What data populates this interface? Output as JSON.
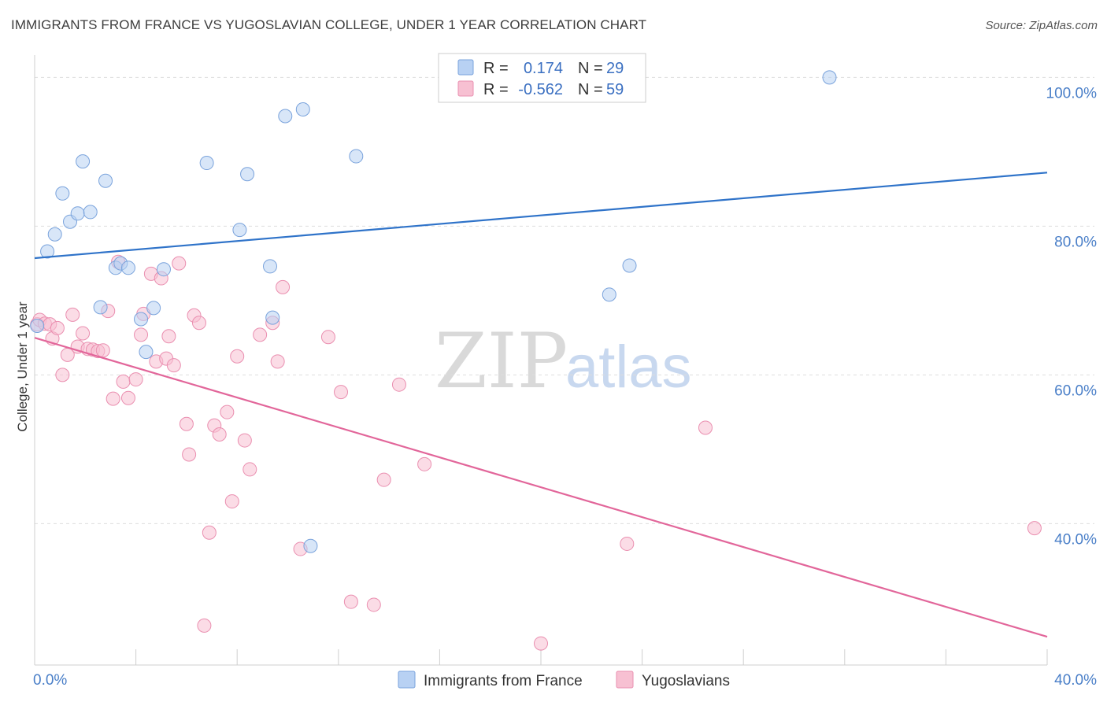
{
  "title": "IMMIGRANTS FROM FRANCE VS YUGOSLAVIAN COLLEGE, UNDER 1 YEAR CORRELATION CHART",
  "source": "Source: ZipAtlas.com",
  "watermark": {
    "zip": "ZIP",
    "atlas": "atlas"
  },
  "colors": {
    "blue_fill": "#b8d1f3",
    "blue_stroke": "#7aa3dc",
    "blue_line": "#2f73c9",
    "pink_fill": "#f7c0d2",
    "pink_stroke": "#ea8fb0",
    "pink_line": "#e2669a",
    "tick_text": "#4a7fc8",
    "grid": "#dddddd"
  },
  "legend": {
    "rows": [
      {
        "r_label": "R =",
        "r_value": "0.174",
        "n_label": "N =",
        "n_value": "29",
        "series": "blue"
      },
      {
        "r_label": "R =",
        "r_value": "-0.562",
        "n_label": "N =",
        "n_value": "59",
        "series": "pink"
      }
    ]
  },
  "chart_data": {
    "type": "scatter",
    "title": "IMMIGRANTS FROM FRANCE VS YUGOSLAVIAN COLLEGE, UNDER 1 YEAR CORRELATION CHART",
    "xlabel": "",
    "ylabel": "College, Under 1 year",
    "xlim": [
      0,
      40
    ],
    "ylim": [
      21,
      103
    ],
    "x_tick_labels": [
      {
        "value": 0,
        "label": "0.0%"
      },
      {
        "value": 40,
        "label": "40.0%"
      }
    ],
    "y_tick_labels": [
      {
        "value": 100,
        "label": "100.0%"
      },
      {
        "value": 80,
        "label": "80.0%"
      },
      {
        "value": 60,
        "label": "60.0%"
      },
      {
        "value": 40,
        "label": "40.0%"
      }
    ],
    "x_minor_ticks": [
      0,
      4,
      8,
      12,
      16,
      20,
      24,
      28,
      32,
      36,
      40
    ],
    "grid": true,
    "legend_position": "top-center",
    "series": [
      {
        "name": "Immigrants from France",
        "color": "blue",
        "points": [
          [
            0.1,
            66.6
          ],
          [
            0.5,
            76.6
          ],
          [
            0.8,
            78.9
          ],
          [
            1.1,
            84.4
          ],
          [
            1.4,
            80.6
          ],
          [
            1.7,
            81.7
          ],
          [
            1.9,
            88.7
          ],
          [
            2.2,
            81.9
          ],
          [
            2.6,
            69.1
          ],
          [
            2.8,
            86.1
          ],
          [
            3.2,
            74.4
          ],
          [
            3.4,
            75.0
          ],
          [
            3.7,
            74.4
          ],
          [
            4.2,
            67.5
          ],
          [
            4.4,
            63.1
          ],
          [
            4.7,
            69.0
          ],
          [
            5.1,
            74.2
          ],
          [
            6.8,
            88.5
          ],
          [
            8.1,
            79.5
          ],
          [
            8.4,
            87.0
          ],
          [
            9.3,
            74.6
          ],
          [
            9.4,
            67.7
          ],
          [
            9.9,
            94.8
          ],
          [
            10.6,
            95.7
          ],
          [
            10.9,
            37.0
          ],
          [
            12.7,
            89.4
          ],
          [
            22.7,
            70.8
          ],
          [
            23.5,
            74.7
          ],
          [
            31.4,
            100.0
          ]
        ],
        "trend": {
          "x": [
            0,
            40
          ],
          "y": [
            75.7,
            87.2
          ]
        }
      },
      {
        "name": "Yugoslavians",
        "color": "pink",
        "points": [
          [
            0.1,
            66.8
          ],
          [
            0.2,
            67.4
          ],
          [
            0.4,
            66.9
          ],
          [
            0.6,
            66.8
          ],
          [
            0.7,
            64.9
          ],
          [
            0.9,
            66.3
          ],
          [
            1.1,
            60.0
          ],
          [
            1.3,
            62.7
          ],
          [
            1.5,
            68.1
          ],
          [
            1.7,
            63.8
          ],
          [
            1.9,
            65.6
          ],
          [
            2.1,
            63.5
          ],
          [
            2.3,
            63.4
          ],
          [
            2.5,
            63.2
          ],
          [
            2.7,
            63.3
          ],
          [
            2.9,
            68.6
          ],
          [
            3.1,
            56.8
          ],
          [
            3.3,
            75.2
          ],
          [
            3.5,
            59.1
          ],
          [
            3.7,
            56.9
          ],
          [
            4.0,
            59.4
          ],
          [
            4.2,
            65.4
          ],
          [
            4.3,
            68.2
          ],
          [
            4.6,
            73.6
          ],
          [
            4.8,
            61.8
          ],
          [
            5.0,
            73.0
          ],
          [
            5.2,
            62.2
          ],
          [
            5.3,
            65.2
          ],
          [
            5.5,
            61.3
          ],
          [
            5.7,
            75.0
          ],
          [
            6.0,
            53.4
          ],
          [
            6.1,
            49.3
          ],
          [
            6.3,
            68.0
          ],
          [
            6.5,
            67.0
          ],
          [
            6.7,
            26.3
          ],
          [
            6.9,
            38.8
          ],
          [
            7.1,
            53.2
          ],
          [
            7.3,
            52.0
          ],
          [
            7.6,
            55.0
          ],
          [
            7.8,
            43.0
          ],
          [
            8.0,
            62.5
          ],
          [
            8.3,
            51.2
          ],
          [
            8.5,
            47.3
          ],
          [
            8.9,
            65.4
          ],
          [
            9.4,
            67.0
          ],
          [
            9.6,
            61.8
          ],
          [
            9.8,
            71.8
          ],
          [
            10.5,
            36.6
          ],
          [
            11.6,
            65.1
          ],
          [
            12.1,
            57.7
          ],
          [
            12.5,
            29.5
          ],
          [
            13.4,
            29.1
          ],
          [
            13.8,
            45.9
          ],
          [
            14.4,
            58.7
          ],
          [
            15.4,
            48.0
          ],
          [
            20.0,
            23.9
          ],
          [
            23.4,
            37.3
          ],
          [
            26.5,
            52.9
          ],
          [
            39.5,
            39.4
          ]
        ],
        "trend": {
          "x": [
            0,
            40
          ],
          "y": [
            65.0,
            24.8
          ]
        }
      }
    ]
  }
}
